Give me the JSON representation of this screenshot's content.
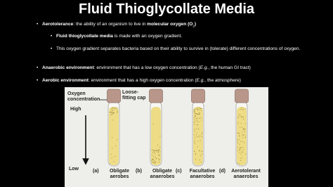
{
  "header": {
    "title": "Fluid Thioglycollate Media"
  },
  "bullets": [
    [
      "Aerotolerance",
      ": the ability of an organism to live in ",
      "molecular oxygen (O",
      "2",
      ")"
    ],
    [
      "Fluid thioglycollate media",
      " is made with an oxygen gradient."
    ],
    [
      "This oxygen gradient separates bacteria based on their ability to survive in (tolerate) different concentrations of oxygen."
    ],
    [
      "Anaerobic environment",
      ": environment that has a low oxygen concentration (",
      "E.g.",
      ", the human GI tract)"
    ],
    [
      "Aerobic environment",
      ": environment that has a high oxygen concentration (",
      "E.g.",
      ", the atmosphere)"
    ]
  ],
  "figure": {
    "axis_label": "Oxygen concentration",
    "high": "High",
    "low": "Low",
    "cap": "Loose-fitting cap",
    "tubes": [
      {
        "letter": "(a)",
        "name": "Obligate aerobes"
      },
      {
        "letter": "(b)",
        "name": "Obligate anaerobes"
      },
      {
        "letter": "(c)",
        "name": "Facultative anaerobes"
      },
      {
        "letter": "(d)",
        "name": "Aerotolerant anaerobes"
      }
    ]
  }
}
